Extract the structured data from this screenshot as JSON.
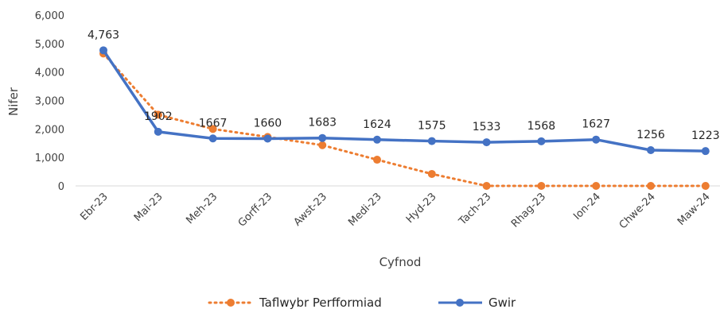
{
  "chart_data": {
    "type": "line",
    "xlabel": "Cyfnod",
    "ylabel": "Nifer",
    "ylim": [
      0,
      6000
    ],
    "yticks": [
      "0",
      "1,000",
      "2,000",
      "3,000",
      "4,000",
      "5,000",
      "6,000"
    ],
    "categories": [
      "Ebr-23",
      "Mai-23",
      "Meh-23",
      "Gorff-23",
      "Awst-23",
      "Medi-23",
      "Hyd-23",
      "Tach-23",
      "Rhag-23",
      "Ion-24",
      "Chwe-24",
      "Maw-24"
    ],
    "grid": false,
    "legend_position": "bottom",
    "series": [
      {
        "name": "Taflwybr Perfformiad",
        "color": "#ED7D31",
        "style": "dotted",
        "values": [
          4650,
          2500,
          2000,
          1720,
          1430,
          920,
          420,
          0,
          0,
          0,
          0,
          0
        ]
      },
      {
        "name": "Gwir",
        "color": "#4472C4",
        "style": "solid",
        "values": [
          4763,
          1902,
          1667,
          1660,
          1683,
          1624,
          1575,
          1533,
          1568,
          1627,
          1256,
          1223
        ],
        "data_labels": [
          "4,763",
          "1902",
          "1667",
          "1660",
          "1683",
          "1624",
          "1575",
          "1533",
          "1568",
          "1627",
          "1256",
          "1223"
        ]
      }
    ]
  }
}
